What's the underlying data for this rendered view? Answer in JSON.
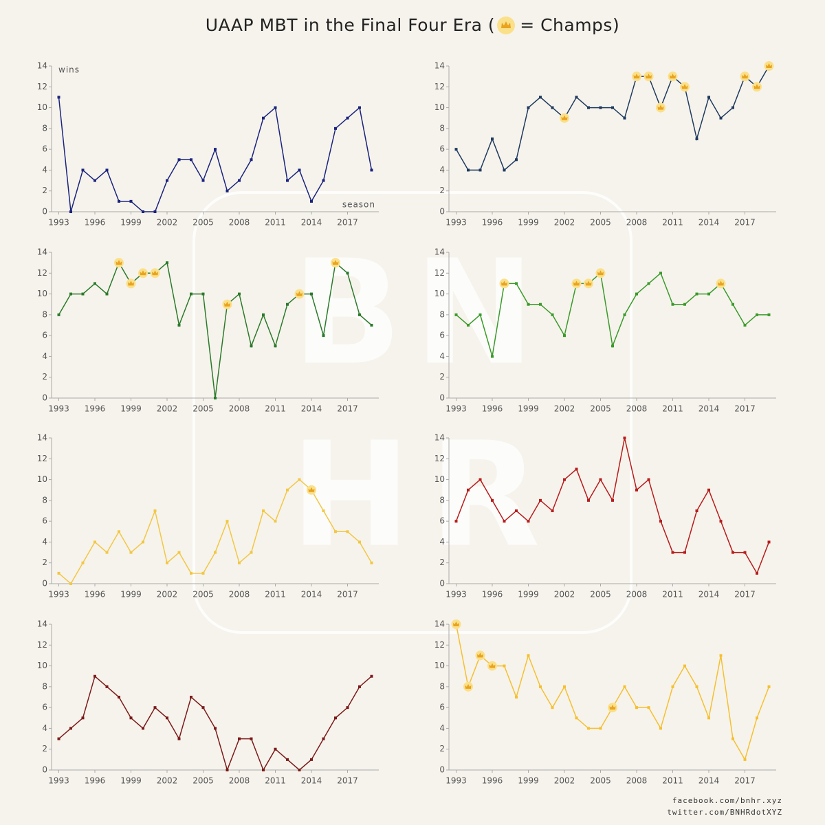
{
  "header": {
    "title_before": "UAAP MBT in the Final Four Era (",
    "title_after": "= Champs)"
  },
  "watermark": [
    "B",
    "N",
    "H",
    "R"
  ],
  "footer": [
    "facebook.com/bnhr.xyz",
    "twitter.com/BNHRdotXYZ"
  ],
  "chart_data": [
    {
      "type": "line",
      "ylabel": "wins",
      "xlabel": "season",
      "color": "#1a237e",
      "x": [
        1993,
        1994,
        1995,
        1996,
        1997,
        1998,
        1999,
        2000,
        2001,
        2002,
        2003,
        2004,
        2005,
        2006,
        2007,
        2008,
        2009,
        2010,
        2011,
        2012,
        2013,
        2014,
        2015,
        2016,
        2017,
        2018,
        2019
      ],
      "values": [
        11,
        0,
        4,
        3,
        4,
        1,
        1,
        0,
        0,
        3,
        5,
        5,
        3,
        6,
        2,
        3,
        5,
        9,
        10,
        3,
        4,
        1,
        3,
        8,
        9,
        10,
        4
      ],
      "champions": [],
      "xlim": [
        1992.4,
        2019.6
      ],
      "ylim": [
        0,
        14
      ],
      "xticks": [
        1993,
        1996,
        1999,
        2002,
        2005,
        2008,
        2011,
        2014,
        2017
      ],
      "yticks": [
        0,
        2,
        4,
        6,
        8,
        10,
        12,
        14
      ]
    },
    {
      "type": "line",
      "color": "#1f3a5f",
      "x": [
        1993,
        1994,
        1995,
        1996,
        1997,
        1998,
        1999,
        2000,
        2001,
        2002,
        2003,
        2004,
        2005,
        2006,
        2007,
        2008,
        2009,
        2010,
        2011,
        2012,
        2013,
        2014,
        2015,
        2016,
        2017,
        2018,
        2019
      ],
      "values": [
        6,
        4,
        4,
        7,
        4,
        5,
        10,
        11,
        10,
        9,
        11,
        10,
        10,
        10,
        9,
        13,
        13,
        10,
        13,
        12,
        7,
        11,
        9,
        10,
        13,
        12,
        14
      ],
      "champions": [
        2002,
        2008,
        2009,
        2010,
        2011,
        2012,
        2017,
        2018,
        2019
      ],
      "xlim": [
        1992.4,
        2019.6
      ],
      "ylim": [
        0,
        14
      ],
      "xticks": [
        1993,
        1996,
        1999,
        2002,
        2005,
        2008,
        2011,
        2014,
        2017
      ],
      "yticks": [
        0,
        2,
        4,
        6,
        8,
        10,
        12,
        14
      ]
    },
    {
      "type": "line",
      "color": "#2a7a2a",
      "x": [
        1993,
        1994,
        1995,
        1996,
        1997,
        1998,
        1999,
        2000,
        2001,
        2002,
        2003,
        2004,
        2005,
        2006,
        2007,
        2008,
        2009,
        2010,
        2011,
        2012,
        2013,
        2014,
        2015,
        2016,
        2017,
        2018,
        2019
      ],
      "values": [
        8,
        10,
        10,
        11,
        10,
        13,
        11,
        12,
        12,
        13,
        7,
        10,
        10,
        0,
        9,
        10,
        5,
        8,
        5,
        9,
        10,
        10,
        6,
        13,
        12,
        8,
        7
      ],
      "champions": [
        1998,
        1999,
        2000,
        2001,
        2007,
        2013,
        2016
      ],
      "xlim": [
        1992.4,
        2019.6
      ],
      "ylim": [
        0,
        14
      ],
      "xticks": [
        1993,
        1996,
        1999,
        2002,
        2005,
        2008,
        2011,
        2014,
        2017
      ],
      "yticks": [
        0,
        2,
        4,
        6,
        8,
        10,
        12,
        14
      ]
    },
    {
      "type": "line",
      "color": "#3a9a2a",
      "x": [
        1993,
        1994,
        1995,
        1996,
        1997,
        1998,
        1999,
        2000,
        2001,
        2002,
        2003,
        2004,
        2005,
        2006,
        2007,
        2008,
        2009,
        2010,
        2011,
        2012,
        2013,
        2014,
        2015,
        2016,
        2017,
        2018,
        2019
      ],
      "values": [
        8,
        7,
        8,
        4,
        11,
        11,
        9,
        9,
        8,
        6,
        11,
        11,
        12,
        5,
        8,
        10,
        11,
        12,
        9,
        9,
        10,
        10,
        11,
        9,
        7,
        8,
        8
      ],
      "champions": [
        1997,
        2003,
        2004,
        2005,
        2015
      ],
      "xlim": [
        1992.4,
        2019.6
      ],
      "ylim": [
        0,
        14
      ],
      "xticks": [
        1993,
        1996,
        1999,
        2002,
        2005,
        2008,
        2011,
        2014,
        2017
      ],
      "yticks": [
        0,
        2,
        4,
        6,
        8,
        10,
        12,
        14
      ]
    },
    {
      "type": "line",
      "color": "#f2c744",
      "x": [
        1993,
        1994,
        1995,
        1996,
        1997,
        1998,
        1999,
        2000,
        2001,
        2002,
        2003,
        2004,
        2005,
        2006,
        2007,
        2008,
        2009,
        2010,
        2011,
        2012,
        2013,
        2014,
        2015,
        2016,
        2017,
        2018,
        2019
      ],
      "values": [
        1,
        0,
        2,
        4,
        3,
        5,
        3,
        4,
        7,
        2,
        3,
        1,
        1,
        3,
        6,
        2,
        3,
        7,
        6,
        9,
        10,
        9,
        7,
        5,
        5,
        4,
        2
      ],
      "champions": [
        2014
      ],
      "xlim": [
        1992.4,
        2019.6
      ],
      "ylim": [
        0,
        14
      ],
      "xticks": [
        1993,
        1996,
        1999,
        2002,
        2005,
        2008,
        2011,
        2014,
        2017
      ],
      "yticks": [
        0,
        2,
        4,
        6,
        8,
        10,
        12,
        14
      ]
    },
    {
      "type": "line",
      "color": "#b71c1c",
      "x": [
        1993,
        1994,
        1995,
        1996,
        1997,
        1998,
        1999,
        2000,
        2001,
        2002,
        2003,
        2004,
        2005,
        2006,
        2007,
        2008,
        2009,
        2010,
        2011,
        2012,
        2013,
        2014,
        2015,
        2016,
        2017,
        2018,
        2019
      ],
      "values": [
        6,
        9,
        10,
        8,
        6,
        7,
        6,
        8,
        7,
        10,
        11,
        8,
        10,
        8,
        14,
        9,
        10,
        6,
        3,
        3,
        7,
        9,
        6,
        3,
        3,
        1,
        4
      ],
      "champions": [],
      "xlim": [
        1992.4,
        2019.6
      ],
      "ylim": [
        0,
        14
      ],
      "xticks": [
        1993,
        1996,
        1999,
        2002,
        2005,
        2008,
        2011,
        2014,
        2017
      ],
      "yticks": [
        0,
        2,
        4,
        6,
        8,
        10,
        12,
        14
      ]
    },
    {
      "type": "line",
      "color": "#7b1a1a",
      "x": [
        1993,
        1994,
        1995,
        1996,
        1997,
        1998,
        1999,
        2000,
        2001,
        2002,
        2003,
        2004,
        2005,
        2006,
        2007,
        2008,
        2009,
        2010,
        2011,
        2012,
        2013,
        2014,
        2015,
        2016,
        2017,
        2018,
        2019
      ],
      "values": [
        3,
        4,
        5,
        9,
        8,
        7,
        5,
        4,
        6,
        5,
        3,
        7,
        6,
        4,
        0,
        3,
        3,
        0,
        2,
        1,
        0,
        1,
        3,
        5,
        6,
        8,
        9
      ],
      "champions": [],
      "xlim": [
        1992.4,
        2019.6
      ],
      "ylim": [
        0,
        14
      ],
      "xticks": [
        1993,
        1996,
        1999,
        2002,
        2005,
        2008,
        2011,
        2014,
        2017
      ],
      "yticks": [
        0,
        2,
        4,
        6,
        8,
        10,
        12,
        14
      ]
    },
    {
      "type": "line",
      "color": "#f5c030",
      "x": [
        1993,
        1994,
        1995,
        1996,
        1997,
        1998,
        1999,
        2000,
        2001,
        2002,
        2003,
        2004,
        2005,
        2006,
        2007,
        2008,
        2009,
        2010,
        2011,
        2012,
        2013,
        2014,
        2015,
        2016,
        2017,
        2018,
        2019
      ],
      "values": [
        14,
        8,
        11,
        10,
        10,
        7,
        11,
        8,
        6,
        8,
        5,
        4,
        4,
        6,
        8,
        6,
        6,
        4,
        8,
        10,
        8,
        5,
        11,
        3,
        1,
        5,
        8
      ],
      "champions": [
        1993,
        1994,
        1995,
        1996,
        2006
      ],
      "xlim": [
        1992.4,
        2019.6
      ],
      "ylim": [
        0,
        14
      ],
      "xticks": [
        1993,
        1996,
        1999,
        2002,
        2005,
        2008,
        2011,
        2014,
        2017
      ],
      "yticks": [
        0,
        2,
        4,
        6,
        8,
        10,
        12,
        14
      ]
    }
  ]
}
